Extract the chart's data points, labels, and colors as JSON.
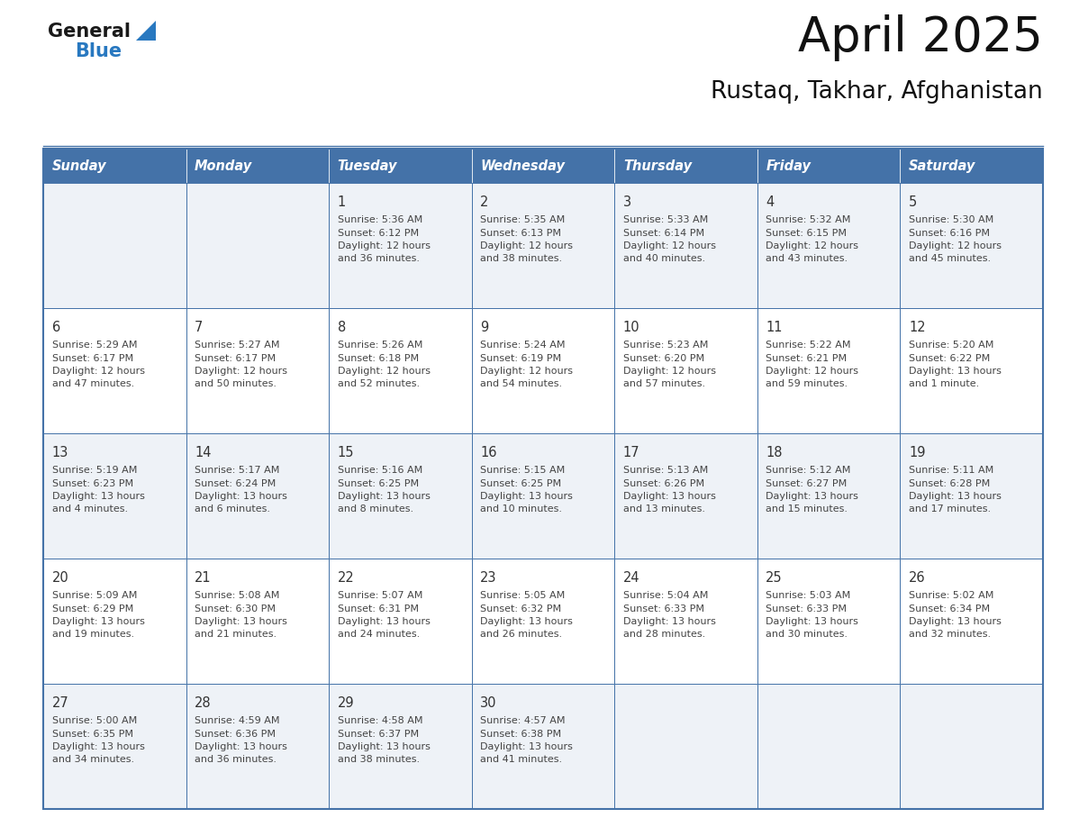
{
  "title": "April 2025",
  "subtitle": "Rustaq, Takhar, Afghanistan",
  "header_bg": "#4472a8",
  "header_text_color": "#ffffff",
  "row_bg_odd": "#eef2f7",
  "row_bg_even": "#ffffff",
  "day_number_color": "#333333",
  "cell_text_color": "#444444",
  "grid_color": "#4472a8",
  "days_of_week": [
    "Sunday",
    "Monday",
    "Tuesday",
    "Wednesday",
    "Thursday",
    "Friday",
    "Saturday"
  ],
  "weeks": [
    [
      {
        "day": "",
        "info": ""
      },
      {
        "day": "",
        "info": ""
      },
      {
        "day": "1",
        "info": "Sunrise: 5:36 AM\nSunset: 6:12 PM\nDaylight: 12 hours\nand 36 minutes."
      },
      {
        "day": "2",
        "info": "Sunrise: 5:35 AM\nSunset: 6:13 PM\nDaylight: 12 hours\nand 38 minutes."
      },
      {
        "day": "3",
        "info": "Sunrise: 5:33 AM\nSunset: 6:14 PM\nDaylight: 12 hours\nand 40 minutes."
      },
      {
        "day": "4",
        "info": "Sunrise: 5:32 AM\nSunset: 6:15 PM\nDaylight: 12 hours\nand 43 minutes."
      },
      {
        "day": "5",
        "info": "Sunrise: 5:30 AM\nSunset: 6:16 PM\nDaylight: 12 hours\nand 45 minutes."
      }
    ],
    [
      {
        "day": "6",
        "info": "Sunrise: 5:29 AM\nSunset: 6:17 PM\nDaylight: 12 hours\nand 47 minutes."
      },
      {
        "day": "7",
        "info": "Sunrise: 5:27 AM\nSunset: 6:17 PM\nDaylight: 12 hours\nand 50 minutes."
      },
      {
        "day": "8",
        "info": "Sunrise: 5:26 AM\nSunset: 6:18 PM\nDaylight: 12 hours\nand 52 minutes."
      },
      {
        "day": "9",
        "info": "Sunrise: 5:24 AM\nSunset: 6:19 PM\nDaylight: 12 hours\nand 54 minutes."
      },
      {
        "day": "10",
        "info": "Sunrise: 5:23 AM\nSunset: 6:20 PM\nDaylight: 12 hours\nand 57 minutes."
      },
      {
        "day": "11",
        "info": "Sunrise: 5:22 AM\nSunset: 6:21 PM\nDaylight: 12 hours\nand 59 minutes."
      },
      {
        "day": "12",
        "info": "Sunrise: 5:20 AM\nSunset: 6:22 PM\nDaylight: 13 hours\nand 1 minute."
      }
    ],
    [
      {
        "day": "13",
        "info": "Sunrise: 5:19 AM\nSunset: 6:23 PM\nDaylight: 13 hours\nand 4 minutes."
      },
      {
        "day": "14",
        "info": "Sunrise: 5:17 AM\nSunset: 6:24 PM\nDaylight: 13 hours\nand 6 minutes."
      },
      {
        "day": "15",
        "info": "Sunrise: 5:16 AM\nSunset: 6:25 PM\nDaylight: 13 hours\nand 8 minutes."
      },
      {
        "day": "16",
        "info": "Sunrise: 5:15 AM\nSunset: 6:25 PM\nDaylight: 13 hours\nand 10 minutes."
      },
      {
        "day": "17",
        "info": "Sunrise: 5:13 AM\nSunset: 6:26 PM\nDaylight: 13 hours\nand 13 minutes."
      },
      {
        "day": "18",
        "info": "Sunrise: 5:12 AM\nSunset: 6:27 PM\nDaylight: 13 hours\nand 15 minutes."
      },
      {
        "day": "19",
        "info": "Sunrise: 5:11 AM\nSunset: 6:28 PM\nDaylight: 13 hours\nand 17 minutes."
      }
    ],
    [
      {
        "day": "20",
        "info": "Sunrise: 5:09 AM\nSunset: 6:29 PM\nDaylight: 13 hours\nand 19 minutes."
      },
      {
        "day": "21",
        "info": "Sunrise: 5:08 AM\nSunset: 6:30 PM\nDaylight: 13 hours\nand 21 minutes."
      },
      {
        "day": "22",
        "info": "Sunrise: 5:07 AM\nSunset: 6:31 PM\nDaylight: 13 hours\nand 24 minutes."
      },
      {
        "day": "23",
        "info": "Sunrise: 5:05 AM\nSunset: 6:32 PM\nDaylight: 13 hours\nand 26 minutes."
      },
      {
        "day": "24",
        "info": "Sunrise: 5:04 AM\nSunset: 6:33 PM\nDaylight: 13 hours\nand 28 minutes."
      },
      {
        "day": "25",
        "info": "Sunrise: 5:03 AM\nSunset: 6:33 PM\nDaylight: 13 hours\nand 30 minutes."
      },
      {
        "day": "26",
        "info": "Sunrise: 5:02 AM\nSunset: 6:34 PM\nDaylight: 13 hours\nand 32 minutes."
      }
    ],
    [
      {
        "day": "27",
        "info": "Sunrise: 5:00 AM\nSunset: 6:35 PM\nDaylight: 13 hours\nand 34 minutes."
      },
      {
        "day": "28",
        "info": "Sunrise: 4:59 AM\nSunset: 6:36 PM\nDaylight: 13 hours\nand 36 minutes."
      },
      {
        "day": "29",
        "info": "Sunrise: 4:58 AM\nSunset: 6:37 PM\nDaylight: 13 hours\nand 38 minutes."
      },
      {
        "day": "30",
        "info": "Sunrise: 4:57 AM\nSunset: 6:38 PM\nDaylight: 13 hours\nand 41 minutes."
      },
      {
        "day": "",
        "info": ""
      },
      {
        "day": "",
        "info": ""
      },
      {
        "day": "",
        "info": ""
      }
    ]
  ],
  "logo_general_color": "#1a1a1a",
  "logo_blue_color": "#2878c0",
  "logo_triangle_color": "#2878c0"
}
